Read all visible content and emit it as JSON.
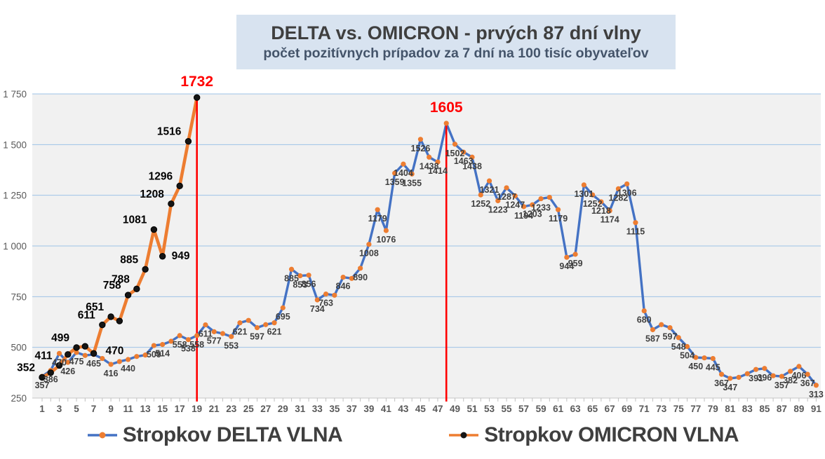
{
  "title": {
    "line1": "DELTA vs. OMICRON - prvých 87 dní vlny",
    "line2": "počet pozitívnych prípadov za 7 dní na 100 tisíc obyvateľov"
  },
  "colors": {
    "delta_line": "#4472C4",
    "delta_marker": "#ED7D31",
    "omicron_line": "#ED7D31",
    "omicron_marker": "#151515",
    "grid": "#9dc3e6",
    "plot_bg": "#f1f1f1",
    "axis_text": "#595959",
    "delta_label": "#3f3f3f",
    "omicron_label": "#000000",
    "annotation_red": "#ff0000",
    "title_bg": "#d8e3f0"
  },
  "y_axis": {
    "min": 250,
    "max": 1750,
    "step": 250,
    "tick_labels": [
      "250",
      "500",
      "750",
      "1 000",
      "1 250",
      "1 500",
      "1 750"
    ]
  },
  "x_axis": {
    "min_day": 1,
    "max_day": 91,
    "tick_labels": [
      1,
      3,
      5,
      7,
      9,
      11,
      13,
      15,
      17,
      19,
      21,
      23,
      25,
      27,
      29,
      31,
      33,
      35,
      37,
      39,
      41,
      43,
      45,
      47,
      49,
      51,
      53,
      55,
      57,
      59,
      61,
      63,
      65,
      67,
      69,
      71,
      73,
      75,
      77,
      79,
      81,
      83,
      85,
      87,
      89,
      91
    ]
  },
  "annotations": [
    {
      "text": "1732",
      "day": 19,
      "value": 1732
    },
    {
      "text": "1605",
      "day": 48,
      "value": 1605
    }
  ],
  "chart_data": {
    "type": "line",
    "x_is_day_index": true,
    "ylim": [
      250,
      1750
    ],
    "grid": true,
    "legend_position": "bottom",
    "series": [
      {
        "name": "Stropkov DELTA VLNA",
        "line_color": "#4472C4",
        "marker_color": "#ED7D31",
        "start_day": 1,
        "values": [
          357,
          386,
          470,
          426,
          475,
          460,
          465,
          445,
          416,
          430,
          440,
          455,
          462,
          509,
          514,
          530,
          558,
          538,
          558,
          611,
          577,
          568,
          553,
          621,
          633,
          597,
          612,
          621,
          695,
          885,
          853,
          856,
          734,
          763,
          757,
          846,
          840,
          890,
          1008,
          1179,
          1076,
          1359,
          1404,
          1355,
          1526,
          1438,
          1414,
          1605,
          1502,
          1463,
          1438,
          1252,
          1321,
          1223,
          1287,
          1247,
          1194,
          1203,
          1233,
          1240,
          1179,
          944,
          959,
          1301,
          1252,
          1218,
          1174,
          1282,
          1306,
          1115,
          680,
          587,
          612,
          597,
          548,
          504,
          450,
          448,
          445,
          367,
          347,
          352,
          370,
          391,
          396,
          360,
          357,
          382,
          406,
          367,
          313
        ],
        "shown_labels": [
          {
            "day": 1,
            "text": "357"
          },
          {
            "day": 2,
            "text": "386"
          },
          {
            "day": 3,
            "text": "470"
          },
          {
            "day": 4,
            "text": "426"
          },
          {
            "day": 5,
            "text": "475"
          },
          {
            "day": 7,
            "text": "465"
          },
          {
            "day": 9,
            "text": "416"
          },
          {
            "day": 11,
            "text": "440"
          },
          {
            "day": 14,
            "text": "509"
          },
          {
            "day": 15,
            "text": "514"
          },
          {
            "day": 17,
            "text": "558"
          },
          {
            "day": 18,
            "text": "538"
          },
          {
            "day": 19,
            "text": "558"
          },
          {
            "day": 20,
            "text": "611"
          },
          {
            "day": 21,
            "text": "577"
          },
          {
            "day": 23,
            "text": "553"
          },
          {
            "day": 24,
            "text": "621"
          },
          {
            "day": 26,
            "text": "597"
          },
          {
            "day": 28,
            "text": "621"
          },
          {
            "day": 29,
            "text": "695"
          },
          {
            "day": 30,
            "text": "885"
          },
          {
            "day": 31,
            "text": "853"
          },
          {
            "day": 32,
            "text": "856"
          },
          {
            "day": 33,
            "text": "734"
          },
          {
            "day": 34,
            "text": "763"
          },
          {
            "day": 36,
            "text": "846"
          },
          {
            "day": 38,
            "text": "890"
          },
          {
            "day": 39,
            "text": "1008"
          },
          {
            "day": 40,
            "text": "1179"
          },
          {
            "day": 41,
            "text": "1076"
          },
          {
            "day": 42,
            "text": "1359"
          },
          {
            "day": 43,
            "text": "1404"
          },
          {
            "day": 44,
            "text": "1355"
          },
          {
            "day": 45,
            "text": "1526"
          },
          {
            "day": 46,
            "text": "1438"
          },
          {
            "day": 47,
            "text": "1414"
          },
          {
            "day": 49,
            "text": "1502"
          },
          {
            "day": 50,
            "text": "1463"
          },
          {
            "day": 51,
            "text": "1438"
          },
          {
            "day": 52,
            "text": "1252"
          },
          {
            "day": 53,
            "text": "1321"
          },
          {
            "day": 54,
            "text": "1223"
          },
          {
            "day": 55,
            "text": "1287"
          },
          {
            "day": 56,
            "text": "1247"
          },
          {
            "day": 57,
            "text": "1194"
          },
          {
            "day": 58,
            "text": "1203"
          },
          {
            "day": 59,
            "text": "1233"
          },
          {
            "day": 61,
            "text": "1179"
          },
          {
            "day": 62,
            "text": "944"
          },
          {
            "day": 63,
            "text": "959"
          },
          {
            "day": 64,
            "text": "1301"
          },
          {
            "day": 65,
            "text": "1252"
          },
          {
            "day": 66,
            "text": "1218"
          },
          {
            "day": 67,
            "text": "1174"
          },
          {
            "day": 68,
            "text": "1282"
          },
          {
            "day": 69,
            "text": "1306"
          },
          {
            "day": 70,
            "text": "1115"
          },
          {
            "day": 71,
            "text": "680"
          },
          {
            "day": 72,
            "text": "587"
          },
          {
            "day": 74,
            "text": "597"
          },
          {
            "day": 75,
            "text": "548"
          },
          {
            "day": 76,
            "text": "504"
          },
          {
            "day": 77,
            "text": "450"
          },
          {
            "day": 79,
            "text": "445"
          },
          {
            "day": 80,
            "text": "367"
          },
          {
            "day": 81,
            "text": "347"
          },
          {
            "day": 84,
            "text": "391"
          },
          {
            "day": 85,
            "text": "396"
          },
          {
            "day": 87,
            "text": "357"
          },
          {
            "day": 88,
            "text": "382"
          },
          {
            "day": 89,
            "text": "406"
          },
          {
            "day": 90,
            "text": "367"
          },
          {
            "day": 91,
            "text": "313"
          }
        ]
      },
      {
        "name": "Stropkov OMICRON VLNA",
        "line_color": "#ED7D31",
        "marker_color": "#151515",
        "start_day": 1,
        "values": [
          352,
          375,
          411,
          465,
          499,
          505,
          470,
          611,
          651,
          630,
          758,
          788,
          885,
          1081,
          949,
          1208,
          1296,
          1516,
          1732
        ],
        "shown_labels": [
          {
            "day": 1,
            "text": "352"
          },
          {
            "day": 3,
            "text": "411"
          },
          {
            "day": 5,
            "text": "499"
          },
          {
            "day": 7,
            "text": "470"
          },
          {
            "day": 8,
            "text": "611"
          },
          {
            "day": 9,
            "text": "651"
          },
          {
            "day": 11,
            "text": "758"
          },
          {
            "day": 12,
            "text": "788"
          },
          {
            "day": 13,
            "text": "885"
          },
          {
            "day": 14,
            "text": "1081"
          },
          {
            "day": 15,
            "text": "949"
          },
          {
            "day": 16,
            "text": "1208"
          },
          {
            "day": 17,
            "text": "1296"
          },
          {
            "day": 18,
            "text": "1516"
          }
        ]
      }
    ]
  }
}
